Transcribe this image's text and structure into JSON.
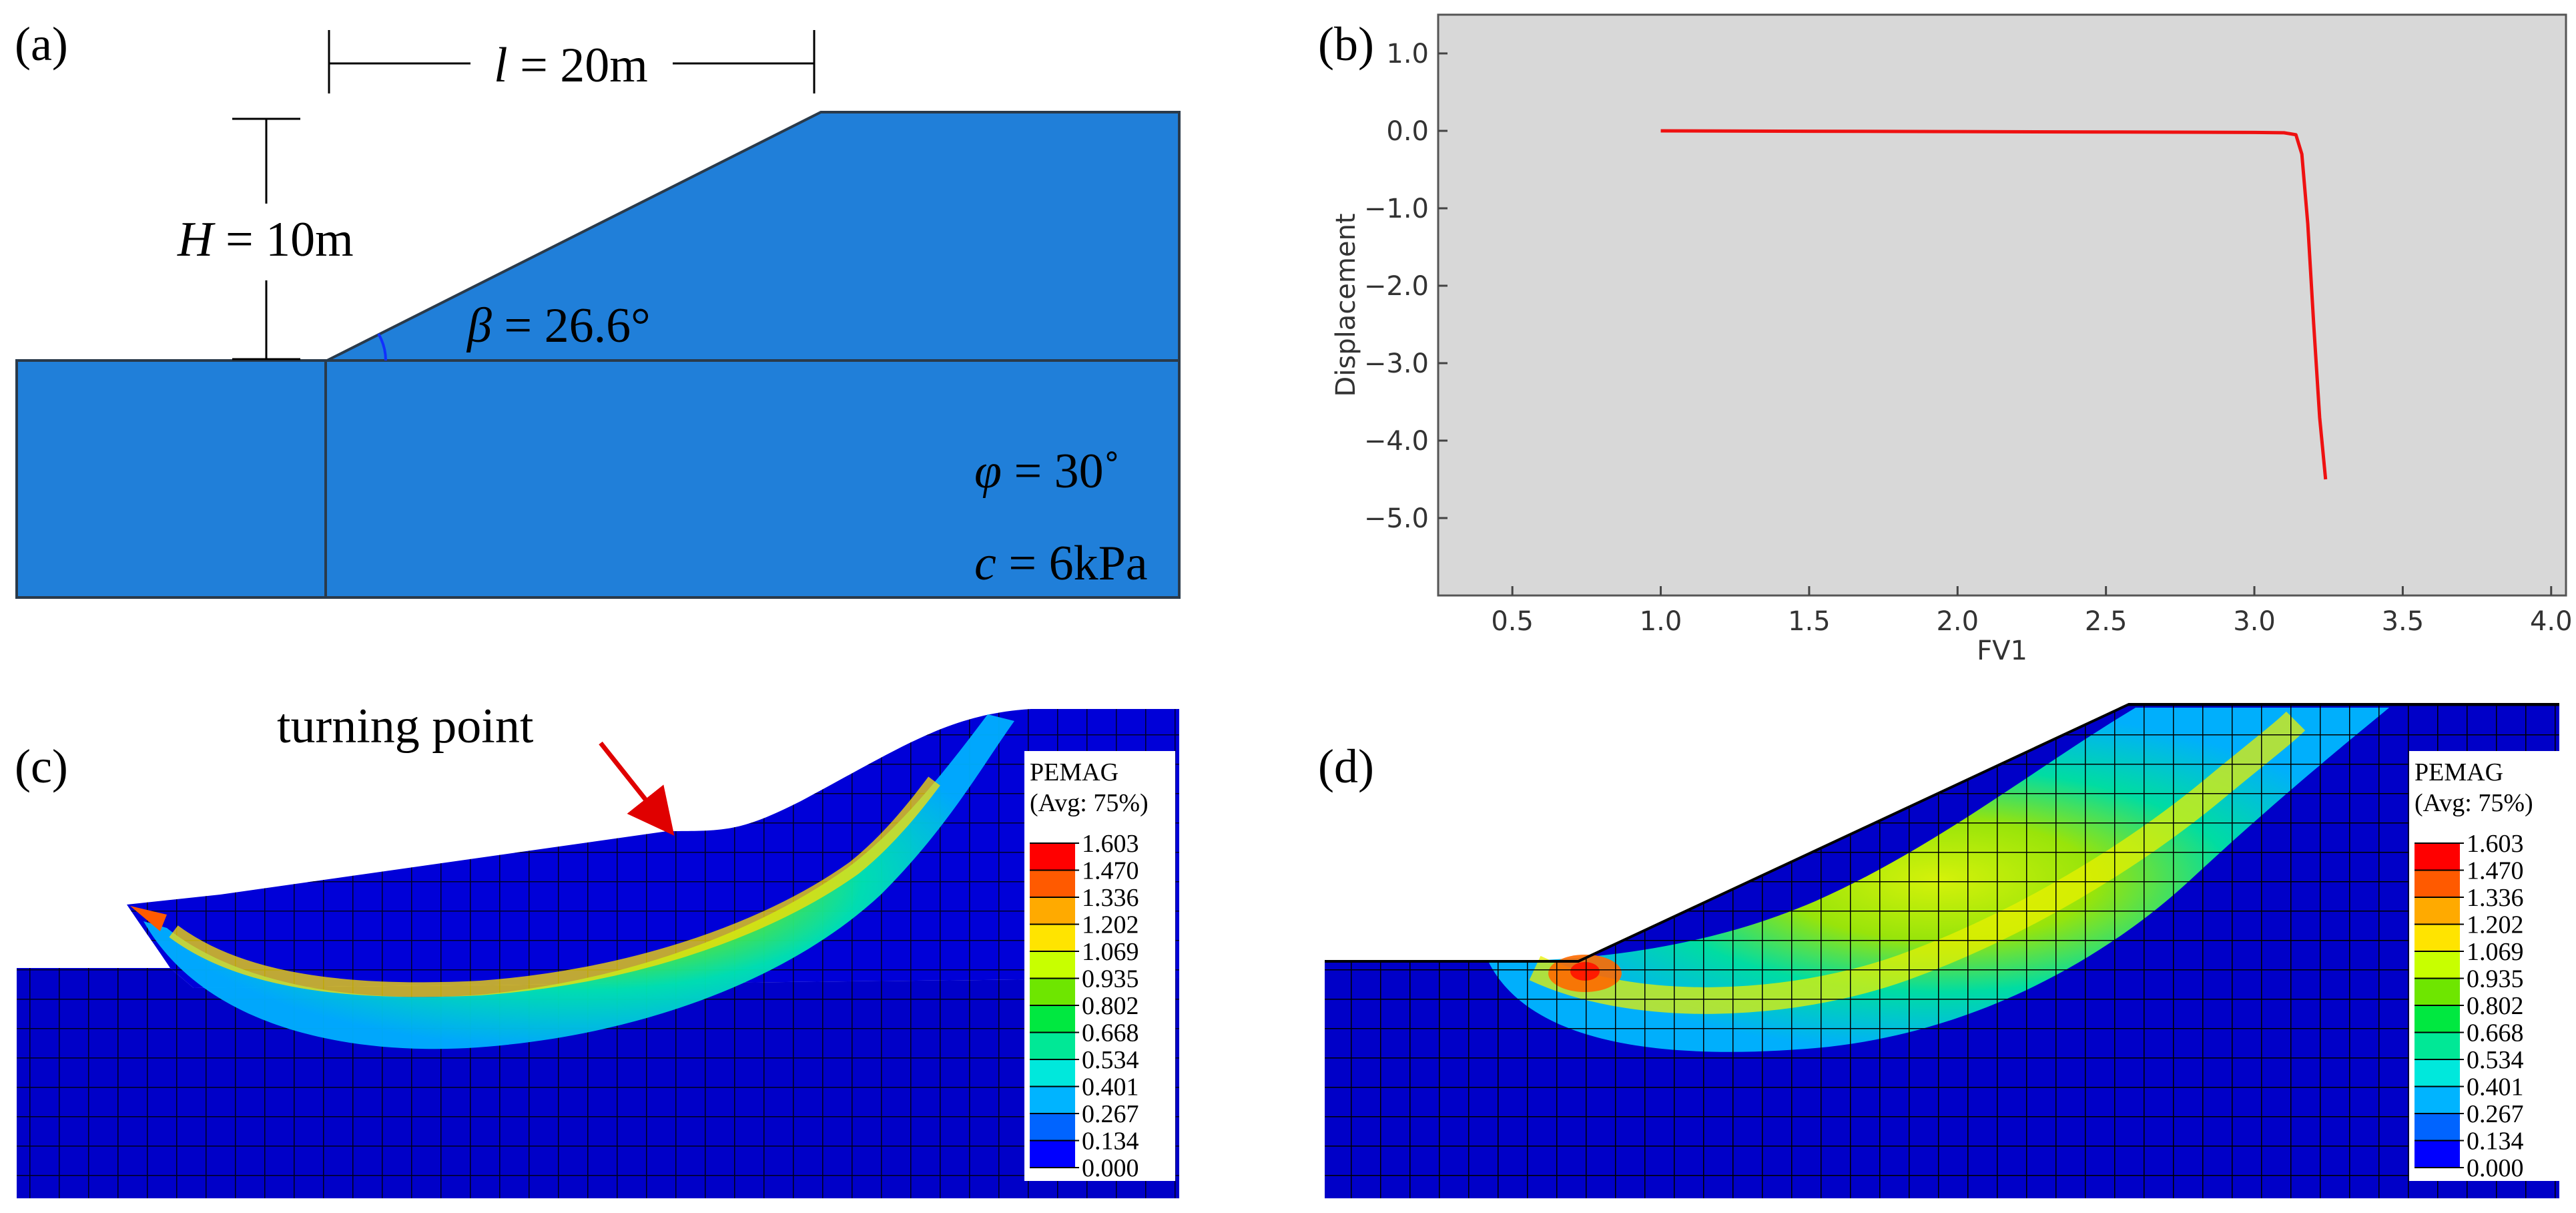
{
  "panels": {
    "a": {
      "label": "(a)",
      "length_label": {
        "symbol": "l",
        "rest": " = 20m"
      },
      "height_label": {
        "symbol": "H",
        "rest": " = 10m"
      },
      "angle_label": {
        "symbol": "β",
        "rest": " = 26.6°"
      },
      "phi_label": {
        "symbol": "φ",
        "rest": " = 30˚"
      },
      "cohesion_label": {
        "symbol": "c",
        "rest": " = 6kPa"
      },
      "colors": {
        "soil": "#207fd9",
        "line": "#2a3a4a"
      }
    },
    "b": {
      "label": "(b)"
    },
    "c": {
      "label": "(c)",
      "annotation": "turning point"
    },
    "d": {
      "label": "(d)"
    }
  },
  "legend": {
    "title": "PEMAG",
    "subtitle": "(Avg: 75%)",
    "values": [
      "1.603",
      "1.470",
      "1.336",
      "1.202",
      "1.069",
      "0.935",
      "0.802",
      "0.668",
      "0.534",
      "0.401",
      "0.267",
      "0.134",
      "0.000"
    ],
    "colors": [
      "#ff0000",
      "#ff5a00",
      "#ffaa00",
      "#ffe400",
      "#c8ff00",
      "#6ee600",
      "#00e840",
      "#00e896",
      "#00e8dc",
      "#00b4ff",
      "#0064ff",
      "#0000ff"
    ]
  },
  "chart_data": {
    "type": "line",
    "title": "",
    "xlabel": "FV1",
    "ylabel": "Displacement",
    "xlim": [
      0.25,
      4.05
    ],
    "ylim": [
      -6.0,
      1.5
    ],
    "xticks": [
      0.5,
      1.0,
      1.5,
      2.0,
      2.5,
      3.0,
      3.5,
      4.0
    ],
    "xtick_labels": [
      "0.5",
      "1.0",
      "1.5",
      "2.0",
      "2.5",
      "3.0",
      "3.5",
      "4.0"
    ],
    "yticks": [
      1.0,
      0.0,
      -1.0,
      -2.0,
      -3.0,
      -4.0,
      -5.0
    ],
    "ytick_labels": [
      "1.0",
      "0.0",
      "−1.0",
      "−2.0",
      "−3.0",
      "−4.0",
      "−5.0"
    ],
    "series": [
      {
        "name": "displacement",
        "color": "#ee1111",
        "x": [
          1.0,
          1.5,
          2.0,
          2.5,
          3.0,
          3.1,
          3.14,
          3.16,
          3.18,
          3.2,
          3.22,
          3.24
        ],
        "y": [
          0.0,
          -0.005,
          -0.01,
          -0.015,
          -0.02,
          -0.025,
          -0.05,
          -0.3,
          -1.2,
          -2.5,
          -3.7,
          -4.5
        ]
      }
    ],
    "background": "#d8d8d8"
  }
}
